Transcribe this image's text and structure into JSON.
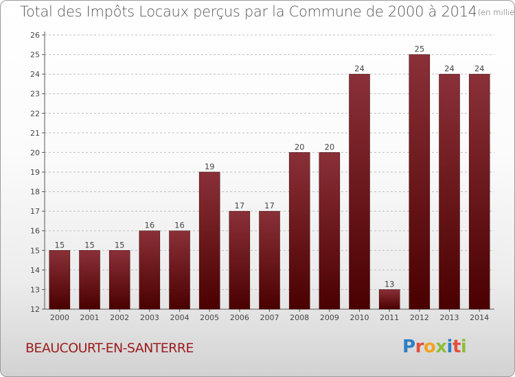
{
  "header": {
    "title": "Total des Impôts Locaux perçus par la Commune de 2000 à 2014",
    "unit": "(en milliers d'€)"
  },
  "footer": {
    "commune": "BEAUCOURT-EN-SANTERRE",
    "logo_letters": [
      {
        "char": "P",
        "color": "#2f7fc4"
      },
      {
        "char": "r",
        "color": "#e24f3a"
      },
      {
        "char": "o",
        "color": "#f0a321"
      },
      {
        "char": "x",
        "color": "#8bbf3b"
      },
      {
        "char": "i",
        "color": "#2f7fc4"
      },
      {
        "char": "t",
        "color": "#e24f3a"
      },
      {
        "char": "i",
        "color": "#8bbf3b"
      }
    ]
  },
  "chart_data": {
    "type": "bar",
    "categories": [
      "2000",
      "2001",
      "2002",
      "2003",
      "2004",
      "2005",
      "2006",
      "2007",
      "2008",
      "2009",
      "2010",
      "2011",
      "2012",
      "2013",
      "2014"
    ],
    "values": [
      15,
      15,
      15,
      16,
      16,
      19,
      17,
      17,
      20,
      20,
      24,
      13,
      25,
      24,
      24
    ],
    "ylim": [
      12,
      26
    ],
    "yticks": [
      12,
      13,
      14,
      15,
      16,
      17,
      18,
      19,
      20,
      21,
      22,
      23,
      24,
      25,
      26
    ],
    "grid": true,
    "bar_color_top": "#8a3038",
    "bar_color_bottom": "#4a0000",
    "data_labels": true
  }
}
